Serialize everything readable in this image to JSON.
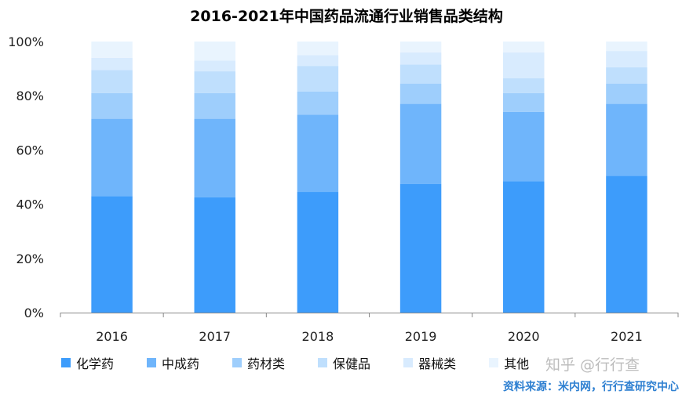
{
  "chart_data": {
    "type": "bar",
    "stacked": true,
    "title": "2016-2021年中国药品流通行业销售品类结构",
    "categories": [
      "2016",
      "2017",
      "2018",
      "2019",
      "2020",
      "2021"
    ],
    "ylim": [
      0,
      100
    ],
    "yticks": [
      "0%",
      "20%",
      "40%",
      "60%",
      "80%",
      "100%"
    ],
    "series": [
      {
        "name": "化学药",
        "color": "#3d9cfb",
        "values": [
          43,
          42.5,
          44.5,
          47.5,
          48.5,
          50.5
        ]
      },
      {
        "name": "中成药",
        "color": "#6fb5fb",
        "values": [
          28.5,
          29,
          28.5,
          29.5,
          25.5,
          26.5
        ]
      },
      {
        "name": "药材类",
        "color": "#9ecefc",
        "values": [
          9.5,
          9.5,
          8.5,
          7.5,
          7,
          7.5
        ]
      },
      {
        "name": "保健品",
        "color": "#bfdffd",
        "values": [
          8.5,
          8,
          9.5,
          7,
          5.5,
          6
        ]
      },
      {
        "name": "器械类",
        "color": "#d8ebfe",
        "values": [
          4.5,
          4,
          4,
          4.5,
          9.5,
          6
        ]
      },
      {
        "name": "其他",
        "color": "#e9f4fe",
        "values": [
          6,
          7,
          5,
          4,
          4,
          3.5
        ]
      }
    ],
    "legend_position": "bottom-left",
    "grid": false
  },
  "watermark": "知乎 @行行查",
  "source": "资料来源：米内网，行行查研究中心"
}
